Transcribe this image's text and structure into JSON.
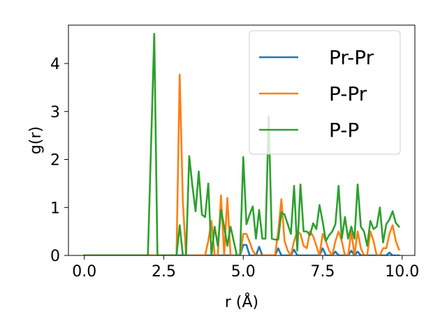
{
  "chart_data": {
    "type": "line",
    "xlabel": "r (Å)",
    "ylabel": "g(r)",
    "xlim": [
      -0.5,
      10.4
    ],
    "ylim": [
      0,
      4.8
    ],
    "xticks": [
      0.0,
      2.5,
      5.0,
      7.5,
      10.0
    ],
    "xtick_labels": [
      "0.0",
      "2.5",
      "5.0",
      "7.5",
      "10.0"
    ],
    "yticks": [
      0,
      1,
      2,
      3,
      4
    ],
    "ytick_labels": [
      "0",
      "1",
      "2",
      "3",
      "4"
    ],
    "legend_position": "top-right",
    "grid": false,
    "series": [
      {
        "name": "Pr-Pr",
        "color": "#1f77b4",
        "x": [
          0.0,
          4.9,
          5.0,
          5.1,
          5.2,
          5.4,
          5.5,
          5.6,
          6.0,
          6.1,
          6.2,
          6.3,
          6.5,
          6.6,
          6.7,
          6.8,
          7.0,
          7.4,
          7.5,
          7.6,
          7.8,
          7.9,
          8.0,
          8.1,
          8.3,
          8.4,
          8.5,
          8.6,
          8.7,
          8.8,
          9.0,
          9.5,
          9.6,
          9.7,
          9.9
        ],
        "y": [
          0.0,
          0.0,
          0.22,
          0.22,
          0.0,
          0.0,
          0.18,
          0.0,
          0.0,
          0.15,
          0.0,
          0.0,
          0.0,
          0.12,
          0.0,
          0.0,
          0.0,
          0.0,
          0.15,
          0.0,
          0.0,
          0.08,
          0.0,
          0.0,
          0.0,
          0.1,
          0.0,
          0.08,
          0.0,
          0.0,
          0.0,
          0.0,
          0.06,
          0.0,
          0.0
        ]
      },
      {
        "name": "P-Pr",
        "color": "#ff7f0e",
        "x": [
          0.0,
          2.9,
          3.0,
          3.1,
          3.2,
          3.6,
          3.8,
          3.9,
          4.0,
          4.1,
          4.2,
          4.3,
          4.4,
          4.5,
          4.6,
          4.7,
          4.8,
          4.9,
          5.0,
          5.1,
          5.2,
          5.3,
          5.4,
          5.5,
          5.6,
          5.8,
          5.9,
          6.0,
          6.1,
          6.2,
          6.3,
          6.4,
          6.5,
          6.6,
          6.7,
          6.8,
          6.9,
          7.0,
          7.1,
          7.2,
          7.3,
          7.4,
          7.5,
          7.6,
          7.7,
          7.8,
          7.9,
          8.0,
          8.1,
          8.2,
          8.3,
          8.4,
          8.5,
          8.6,
          8.7,
          8.8,
          8.9,
          9.0,
          9.1,
          9.2,
          9.3,
          9.4,
          9.5,
          9.6,
          9.7,
          9.8,
          9.9
        ],
        "y": [
          0.0,
          0.0,
          3.77,
          1.1,
          0.0,
          0.0,
          0.0,
          0.3,
          0.72,
          0.0,
          0.0,
          1.25,
          0.0,
          1.2,
          0.0,
          0.0,
          0.0,
          0.0,
          0.45,
          0.45,
          0.28,
          0.1,
          0.0,
          0.0,
          0.0,
          0.0,
          0.0,
          0.0,
          0.5,
          1.17,
          0.3,
          0.1,
          0.0,
          0.3,
          0.5,
          0.45,
          0.2,
          0.15,
          0.5,
          0.4,
          0.2,
          0.0,
          0.45,
          0.3,
          0.1,
          0.0,
          0.3,
          0.5,
          0.3,
          0.0,
          0.0,
          0.5,
          0.0,
          0.5,
          0.15,
          0.0,
          0.0,
          0.5,
          0.3,
          0.0,
          0.0,
          0.15,
          0.15,
          0.45,
          0.63,
          0.3,
          0.12
        ]
      },
      {
        "name": "P-P",
        "color": "#2ca02c",
        "x": [
          0.0,
          2.0,
          2.2,
          2.3,
          2.9,
          3.0,
          3.1,
          3.2,
          3.3,
          3.4,
          3.5,
          3.6,
          3.7,
          3.8,
          3.9,
          4.0,
          4.1,
          4.2,
          4.3,
          4.4,
          4.5,
          4.6,
          4.7,
          4.8,
          4.9,
          5.0,
          5.1,
          5.2,
          5.3,
          5.4,
          5.5,
          5.6,
          5.7,
          5.8,
          5.9,
          6.0,
          6.1,
          6.2,
          6.3,
          6.4,
          6.5,
          6.6,
          6.7,
          6.8,
          6.9,
          7.0,
          7.1,
          7.2,
          7.3,
          7.4,
          7.5,
          7.6,
          7.7,
          7.8,
          7.9,
          8.0,
          8.1,
          8.2,
          8.3,
          8.4,
          8.5,
          8.6,
          8.7,
          8.8,
          8.9,
          9.0,
          9.1,
          9.2,
          9.3,
          9.4,
          9.5,
          9.6,
          9.7,
          9.8,
          9.9
        ],
        "y": [
          0.0,
          0.0,
          4.62,
          0.0,
          0.0,
          0.63,
          0.0,
          0.0,
          2.07,
          1.45,
          0.92,
          1.75,
          0.85,
          0.8,
          1.5,
          0.0,
          0.6,
          0.2,
          0.95,
          0.6,
          0.2,
          0.6,
          0.3,
          0.0,
          0.0,
          2.05,
          0.65,
          0.85,
          1.02,
          0.35,
          0.95,
          0.35,
          0.35,
          2.9,
          0.35,
          0.33,
          0.33,
          0.9,
          0.85,
          0.65,
          0.45,
          1.45,
          0.1,
          1.48,
          0.5,
          0.5,
          0.42,
          0.67,
          0.55,
          1.05,
          0.7,
          0.3,
          0.42,
          0.5,
          0.65,
          1.45,
          0.35,
          0.8,
          0.35,
          0.6,
          0.35,
          1.48,
          0.6,
          0.5,
          0.2,
          0.72,
          0.55,
          0.6,
          1.0,
          0.27,
          0.65,
          0.75,
          0.92,
          0.68,
          0.6
        ]
      }
    ]
  }
}
